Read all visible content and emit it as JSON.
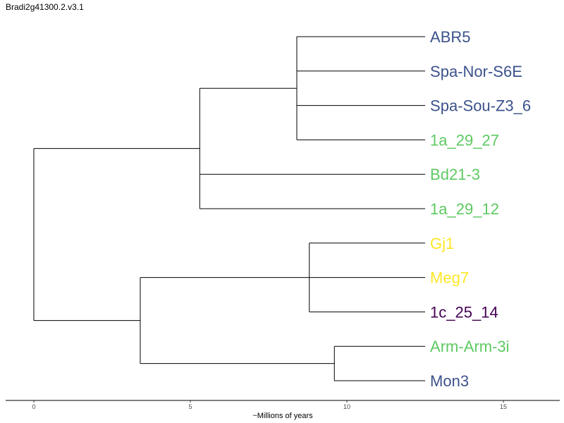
{
  "title": "Bradi2g41300.2.v3.1",
  "axis": {
    "label": "~Millions of years",
    "ticks": [
      {
        "value": 0,
        "label": "0"
      },
      {
        "value": 5,
        "label": "5"
      },
      {
        "value": 10,
        "label": "10"
      },
      {
        "value": 15,
        "label": "15"
      }
    ],
    "range": [
      -0.9,
      16.8
    ]
  },
  "colors": {
    "blue": "#3b528b",
    "green": "#5ec962",
    "yellow": "#fde725",
    "purple": "#440154",
    "branch": "#000000"
  },
  "tree": {
    "leaves": [
      {
        "id": "ABR5",
        "label": "ABR5",
        "color": "#3b528b"
      },
      {
        "id": "Spa-Nor-S6E",
        "label": "Spa-Nor-S6E",
        "color": "#3b528b"
      },
      {
        "id": "Spa-Sou-Z3_6",
        "label": "Spa-Sou-Z3_6",
        "color": "#3b528b"
      },
      {
        "id": "1a_29_27",
        "label": "1a_29_27",
        "color": "#5ec962"
      },
      {
        "id": "Bd21-3",
        "label": "Bd21-3",
        "color": "#5ec962"
      },
      {
        "id": "1a_29_12",
        "label": "1a_29_12",
        "color": "#5ec962"
      },
      {
        "id": "Gj1",
        "label": "Gj1",
        "color": "#fde725"
      },
      {
        "id": "Meg7",
        "label": "Meg7",
        "color": "#fde725"
      },
      {
        "id": "1c_25_14",
        "label": "1c_25_14",
        "color": "#440154"
      },
      {
        "id": "Arm-Arm-3i",
        "label": "Arm-Arm-3i",
        "color": "#5ec962"
      },
      {
        "id": "Mon3",
        "label": "Mon3",
        "color": "#3b528b"
      }
    ],
    "leaf_depth": 12.5,
    "nodes": [
      {
        "id": "n1",
        "depth": 8.4,
        "children": [
          "ABR5",
          "Spa-Nor-S6E",
          "Spa-Sou-Z3_6",
          "1a_29_27"
        ]
      },
      {
        "id": "n2",
        "depth": 5.3,
        "children": [
          "n1",
          "Bd21-3",
          "1a_29_12"
        ]
      },
      {
        "id": "n3",
        "depth": 8.8,
        "children": [
          "Gj1",
          "Meg7",
          "1c_25_14"
        ]
      },
      {
        "id": "n4",
        "depth": 9.6,
        "children": [
          "Arm-Arm-3i",
          "Mon3"
        ]
      },
      {
        "id": "n5",
        "depth": 3.4,
        "children": [
          "n3",
          "n4"
        ]
      },
      {
        "id": "root",
        "depth": 0,
        "children": [
          "n2",
          "n5"
        ]
      }
    ]
  }
}
